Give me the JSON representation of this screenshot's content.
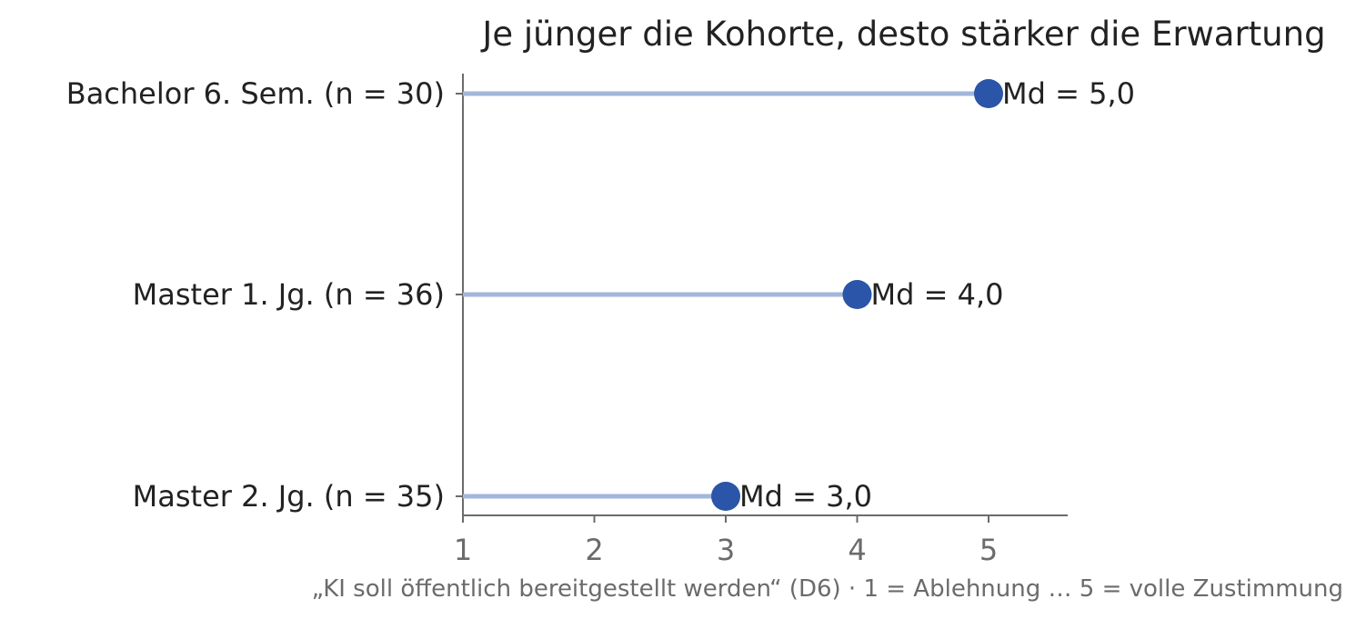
{
  "chart_data": {
    "type": "lollipop",
    "title": "Je jünger die Kohorte, desto stärker die Erwartung",
    "xlabel": "„KI soll öffentlich bereitgestellt werden“ (D6) · 1 = Ablehnung … 5 = volle Zustimmung",
    "ylabel": "",
    "categories": [
      "Bachelor 6. Sem. (n = 30)",
      "Master 1. Jg. (n = 36)",
      "Master 2. Jg. (n = 35)"
    ],
    "values": [
      5.0,
      4.0,
      3.0
    ],
    "data_labels": [
      "Md = 5,0",
      "Md = 4,0",
      "Md = 3,0"
    ],
    "xlim": [
      1,
      5.6
    ],
    "xticks": [
      1,
      2,
      3,
      4,
      5
    ],
    "grid": false,
    "colors": {
      "stem": "#a3b6db",
      "dot": "#2a55a8"
    }
  }
}
